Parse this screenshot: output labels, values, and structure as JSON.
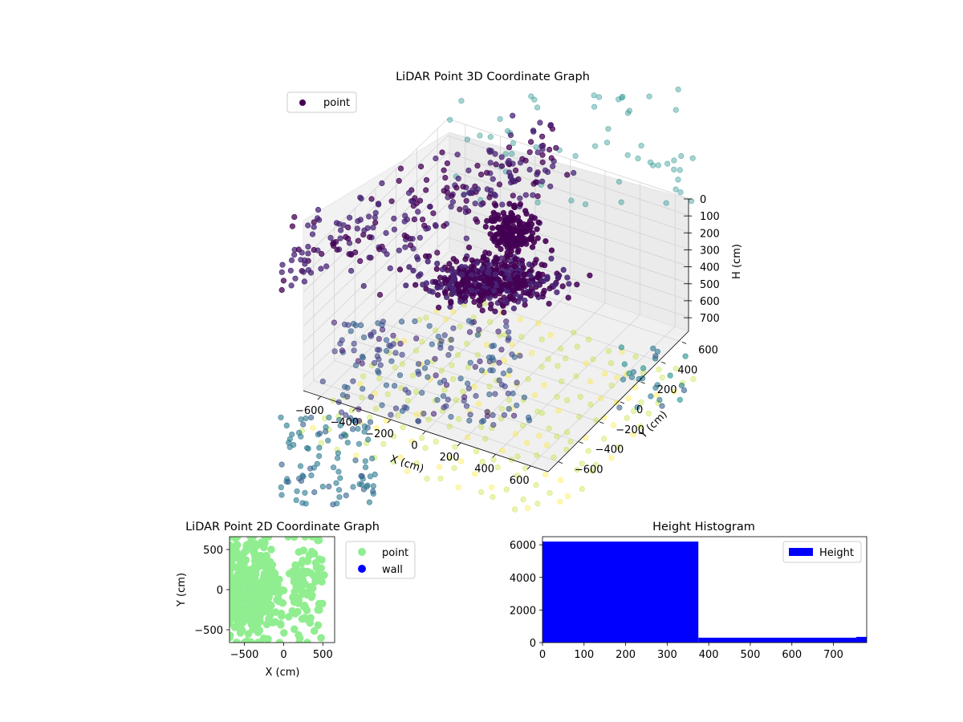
{
  "chart_data": [
    {
      "type": "scatter",
      "projection": "3d",
      "title": "LiDAR Point 3D Coordinate Graph",
      "xlabel": "X (cm)",
      "ylabel": "Y (cm)",
      "zlabel": "H (cm)",
      "x_ticks": [
        -600,
        -400,
        -200,
        0,
        200,
        400,
        600
      ],
      "y_ticks": [
        -600,
        -400,
        -200,
        0,
        200,
        400,
        600
      ],
      "z_ticks": [
        0,
        100,
        200,
        300,
        400,
        500,
        600,
        700
      ],
      "xlim": [
        -700,
        700
      ],
      "ylim": [
        -700,
        700
      ],
      "zlim": [
        0,
        780
      ],
      "z_inverted": true,
      "colormap": "viridis",
      "legend": {
        "placement": "upper-left",
        "entries": [
          {
            "label": "point",
            "color": "#440154"
          }
        ]
      },
      "grid": true,
      "series": [
        {
          "name": "point",
          "description_values": {
            "wall_ridge": [
              [
                -600,
                300,
                150
              ],
              [
                -400,
                350,
                120
              ],
              [
                -200,
                400,
                100
              ],
              [
                0,
                450,
                80
              ],
              [
                100,
                500,
                60
              ]
            ],
            "room_clusters": [
              [
                -50,
                0,
                700
              ],
              [
                100,
                100,
                600
              ],
              [
                -300,
                -400,
                450
              ],
              [
                -500,
                -500,
                400
              ]
            ],
            "ceiling_grid": [
              [
                -600,
                -600,
                780
              ],
              [
                0,
                0,
                780
              ],
              [
                600,
                600,
                780
              ]
            ]
          }
        }
      ]
    },
    {
      "type": "scatter",
      "title": "LiDAR Point 2D Coordinate Graph",
      "xlabel": "X (cm)",
      "ylabel": "Y (cm)",
      "x_ticks": [
        -500,
        0,
        500
      ],
      "y_ticks": [
        -500,
        0,
        500
      ],
      "xlim": [
        -690,
        650
      ],
      "ylim": [
        -660,
        660
      ],
      "legend": {
        "placement": "outside-right",
        "entries": [
          {
            "label": "point",
            "color": "#90ee90"
          },
          {
            "label": "wall",
            "color": "#0000ff"
          }
        ]
      },
      "series": [
        {
          "name": "point",
          "color": "#90ee90",
          "x_range": [
            -690,
            540
          ],
          "y_range": [
            -660,
            660
          ]
        },
        {
          "name": "wall",
          "color": "#0000ff",
          "x": [],
          "y": []
        }
      ]
    },
    {
      "type": "bar",
      "subtype": "histogram",
      "title": "Height Histogram",
      "xlabel": "",
      "ylabel": "",
      "x_ticks": [
        0,
        100,
        200,
        300,
        400,
        500,
        600,
        700
      ],
      "y_ticks": [
        0,
        2000,
        4000,
        6000
      ],
      "xlim": [
        0,
        780
      ],
      "ylim": [
        0,
        6500
      ],
      "legend": {
        "placement": "upper-right",
        "entries": [
          {
            "label": "Height",
            "color": "#0000ff"
          }
        ]
      },
      "bins": [
        {
          "start": 0,
          "end": 375,
          "count": 6200
        },
        {
          "start": 375,
          "end": 755,
          "count": 300
        },
        {
          "start": 755,
          "end": 780,
          "count": 350
        }
      ]
    }
  ]
}
